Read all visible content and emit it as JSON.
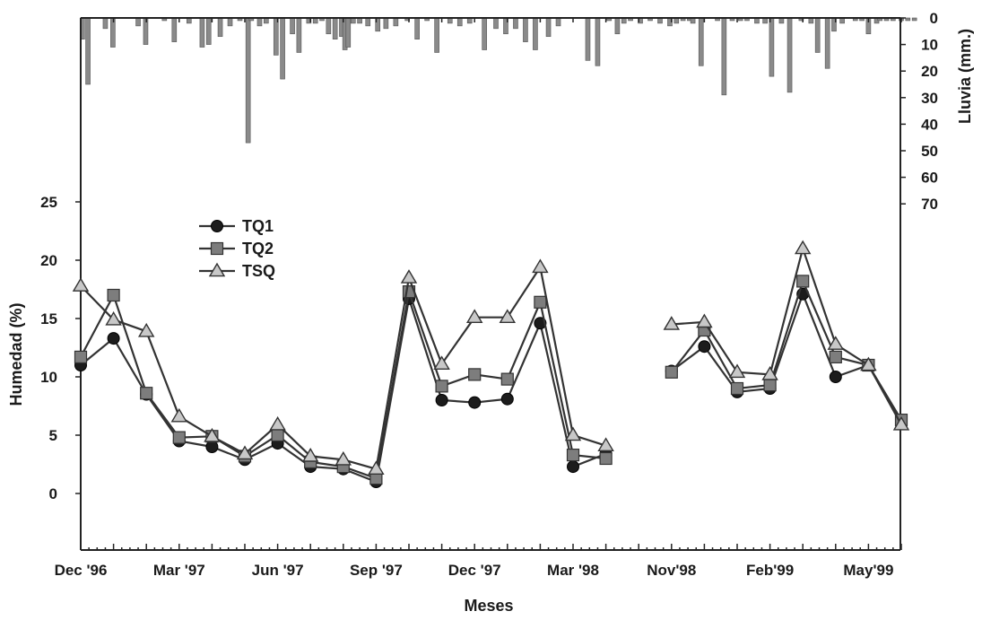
{
  "chart_data": {
    "type": "line",
    "xlabel": "Meses",
    "ylabel": "Humedad (%)",
    "y2label": "Lluvia (mm.)",
    "ylim": [
      -5,
      25
    ],
    "y_ticks": [
      0,
      5,
      10,
      15,
      20,
      25
    ],
    "y2lim": [
      0,
      70
    ],
    "y2_ticks": [
      0,
      10,
      20,
      30,
      40,
      50,
      60,
      70
    ],
    "x_tick_labels": [
      "Dec '96",
      "Mar '97",
      "Jun '97",
      "Sep '97",
      "Dec '97",
      "Mar '98",
      "Nov'98",
      "Feb'99",
      "May'99"
    ],
    "x_tick_label_positions": [
      0,
      3,
      6,
      9,
      12,
      15,
      18,
      21,
      24
    ],
    "grid": false,
    "legend_position": "upper-left",
    "series": [
      {
        "name": "TQ1",
        "marker": "circle",
        "segments": [
          {
            "x": [
              0,
              1,
              2,
              3,
              4,
              5,
              6,
              7,
              8,
              9,
              10,
              11,
              12,
              13,
              14,
              15,
              16
            ],
            "y": [
              11.0,
              13.3,
              8.5,
              4.5,
              4.0,
              2.9,
              4.3,
              2.3,
              2.1,
              1.0,
              16.7,
              8.0,
              7.8,
              8.1,
              14.6,
              2.3,
              3.4
            ]
          },
          {
            "x": [
              18,
              19,
              20,
              21,
              22,
              23,
              24,
              25
            ],
            "y": [
              10.5,
              12.6,
              8.7,
              9.0,
              17.1,
              10.0,
              11.0,
              6.2
            ]
          }
        ]
      },
      {
        "name": "TQ2",
        "marker": "square",
        "segments": [
          {
            "x": [
              0,
              1,
              2,
              3,
              4,
              5,
              6,
              7,
              8,
              9,
              10,
              11,
              12,
              13,
              14,
              15,
              16
            ],
            "y": [
              11.7,
              17.0,
              8.6,
              4.8,
              4.9,
              3.2,
              5.0,
              2.7,
              2.3,
              1.3,
              17.3,
              9.2,
              10.2,
              9.8,
              16.4,
              3.3,
              3.0
            ]
          },
          {
            "x": [
              18,
              19,
              20,
              21,
              22,
              23,
              24,
              25
            ],
            "y": [
              10.4,
              14.0,
              9.0,
              9.3,
              18.2,
              11.7,
              11.0,
              6.3
            ]
          }
        ]
      },
      {
        "name": "TSQ",
        "marker": "triangle",
        "segments": [
          {
            "x": [
              0,
              1,
              2,
              3,
              4,
              5,
              6,
              7,
              8,
              9,
              10,
              11,
              12,
              13,
              14,
              15,
              16
            ],
            "y": [
              17.8,
              14.9,
              13.9,
              6.6,
              4.9,
              3.4,
              5.9,
              3.2,
              2.9,
              2.1,
              18.5,
              11.1,
              15.1,
              15.1,
              19.4,
              5.0,
              4.1
            ]
          },
          {
            "x": [
              18,
              19,
              20,
              21,
              22,
              23,
              24,
              25
            ],
            "y": [
              14.5,
              14.7,
              10.4,
              10.2,
              21.0,
              12.8,
              11.0,
              5.9
            ]
          }
        ]
      }
    ],
    "rainfall": {
      "x": [
        0.05,
        0.22,
        0.75,
        0.98,
        1.75,
        1.98,
        2.55,
        2.85,
        3.3,
        3.7,
        3.9,
        4.25,
        4.55,
        4.85,
        5.1,
        5.2,
        5.45,
        5.65,
        5.95,
        6.15,
        6.45,
        6.65,
        6.95,
        7.15,
        7.35,
        7.55,
        7.75,
        7.95,
        8.05,
        8.15,
        8.3,
        8.5,
        8.75,
        9.05,
        9.3,
        9.6,
        9.95,
        10.25,
        10.55,
        10.85,
        11.25,
        11.55,
        11.85,
        12.3,
        12.65,
        12.95,
        13.25,
        13.55,
        13.85,
        14.25,
        14.55,
        15.45,
        15.75,
        16.1,
        16.35,
        16.55,
        16.75,
        17.05,
        17.35,
        17.65,
        17.95,
        18.15,
        18.35,
        18.55,
        18.65,
        18.9,
        19.4,
        19.6,
        19.85,
        20.1,
        20.3,
        20.6,
        20.85,
        21.05,
        21.35,
        21.6,
        21.95,
        22.25,
        22.45,
        22.75,
        22.95,
        23.2,
        23.6,
        23.8,
        24.0,
        24.25,
        24.35,
        24.55,
        24.75,
        25.0,
        25.2,
        25.4
      ],
      "values": [
        8,
        25,
        4,
        11,
        3,
        10,
        1,
        9,
        2,
        11,
        10,
        7,
        3,
        1,
        47,
        1,
        3,
        2,
        14,
        23,
        6,
        13,
        2,
        2,
        1,
        6,
        8,
        7,
        12,
        11,
        2,
        2,
        3,
        5,
        4,
        3,
        1,
        8,
        1,
        13,
        2,
        3,
        2,
        12,
        4,
        6,
        4,
        9,
        12,
        7,
        3,
        16,
        18,
        1,
        6,
        2,
        1,
        2,
        1,
        2,
        3,
        2,
        1,
        1,
        2,
        18,
        1,
        29,
        1,
        1,
        1,
        2,
        2,
        22,
        2,
        28,
        1,
        2,
        13,
        19,
        5,
        2,
        1,
        1,
        6,
        2,
        1,
        1,
        1,
        1,
        1,
        1
      ]
    }
  }
}
